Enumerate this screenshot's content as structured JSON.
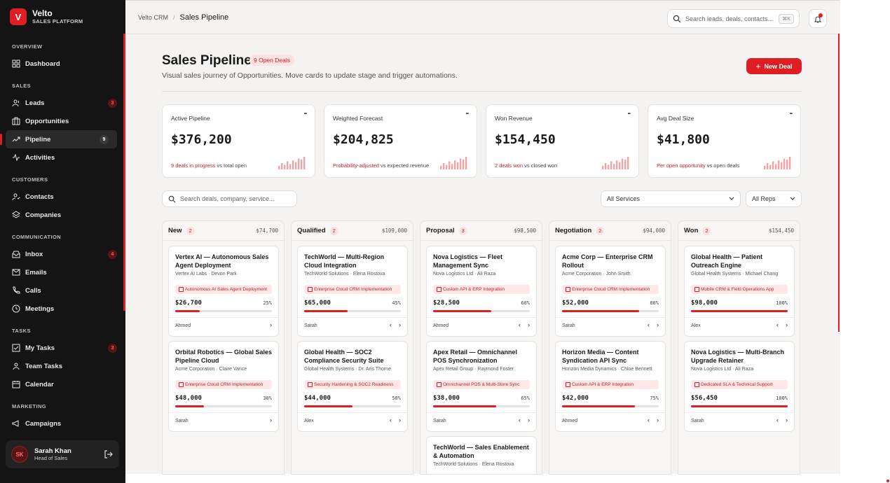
{
  "brand": {
    "name": "Velto",
    "sub": "SALES PLATFORM",
    "logo": "V"
  },
  "sidebar": {
    "sections": [
      {
        "title": "OVERVIEW",
        "items": [
          {
            "label": "Dashboard",
            "icon": "grid-icon",
            "badge": ""
          }
        ]
      },
      {
        "title": "SALES",
        "items": [
          {
            "label": "Leads",
            "icon": "users-icon",
            "badge": "3"
          },
          {
            "label": "Opportunities",
            "icon": "briefcase-icon",
            "badge": ""
          },
          {
            "label": "Pipeline",
            "icon": "trend-icon",
            "badge": "9",
            "active": true
          },
          {
            "label": "Activities",
            "icon": "pulse-icon",
            "badge": ""
          }
        ]
      },
      {
        "title": "CUSTOMERS",
        "items": [
          {
            "label": "Contacts",
            "icon": "contact-icon",
            "badge": ""
          },
          {
            "label": "Companies",
            "icon": "layers-icon",
            "badge": ""
          }
        ]
      },
      {
        "title": "COMMUNICATION",
        "items": [
          {
            "label": "Inbox",
            "icon": "inbox-icon",
            "badge": "4"
          },
          {
            "label": "Emails",
            "icon": "mail-icon",
            "badge": ""
          },
          {
            "label": "Calls",
            "icon": "phone-icon",
            "badge": ""
          },
          {
            "label": "Meetings",
            "icon": "clock-icon",
            "badge": ""
          }
        ]
      },
      {
        "title": "TASKS",
        "items": [
          {
            "label": "My Tasks",
            "icon": "checkbox-icon",
            "badge": "3"
          },
          {
            "label": "Team Tasks",
            "icon": "team-icon",
            "badge": ""
          },
          {
            "label": "Calendar",
            "icon": "calendar-icon",
            "badge": ""
          }
        ]
      },
      {
        "title": "MARKETING",
        "items": [
          {
            "label": "Campaigns",
            "icon": "megaphone-icon",
            "badge": ""
          }
        ]
      }
    ]
  },
  "user": {
    "initials": "SK",
    "name": "Sarah Khan",
    "role": "Head of Sales"
  },
  "header": {
    "crumb_root": "Velto CRM",
    "crumb_sep": "/",
    "crumb_current": "Sales Pipeline",
    "search_placeholder": "Search leads, deals, contacts...",
    "shortcut": "⌘K"
  },
  "page": {
    "title": "Sales Pipeline",
    "badge": "9 Open Deals",
    "subtitle": "Visual sales journey of Opportunities. Move cards to update stage and trigger automations.",
    "new_button": "New Deal"
  },
  "stats": [
    {
      "label": "Active Pipeline",
      "value": "$376,200",
      "highlight": "9 deals in progress",
      "note": " vs total open",
      "bars": [
        4,
        7,
        5,
        9,
        6,
        10,
        8,
        12,
        11,
        14
      ]
    },
    {
      "label": "Weighted Forecast",
      "value": "$204,825",
      "highlight": "Probability-adjusted",
      "note": " vs expected revenue",
      "bars": [
        4,
        7,
        5,
        9,
        6,
        10,
        8,
        12,
        11,
        14
      ]
    },
    {
      "label": "Won Revenue",
      "value": "$154,450",
      "highlight": "2 deals won",
      "note": " vs closed won",
      "bars": [
        4,
        7,
        5,
        9,
        6,
        10,
        8,
        12,
        11,
        14
      ]
    },
    {
      "label": "Avg Deal Size",
      "value": "$41,800",
      "highlight": "Per open opportunity",
      "note": " vs open deals",
      "bars": [
        4,
        7,
        5,
        9,
        6,
        10,
        8,
        12,
        11,
        14
      ]
    }
  ],
  "filters": {
    "search_placeholder": "Search deals, company, service...",
    "service": "All Services",
    "rep": "All Reps"
  },
  "columns": [
    {
      "name": "New",
      "count": "2",
      "total": "$74,700",
      "cards": [
        {
          "title": "Vertex AI — Autonomous Sales Agent Deployment",
          "sub": "Vertex AI Labs · Devon Park",
          "tag": "Autonomous AI Sales Agent Deployment",
          "amount": "$26,700",
          "pct": "25%",
          "progress": 0.25,
          "owner": "Ahmed",
          "arrows": "›"
        },
        {
          "title": "Orbital Robotics — Global Sales Pipeline Cloud",
          "sub": "Acme Corporation · Claire Vance",
          "tag": "Enterprise Cloud CRM Implementation",
          "amount": "$48,000",
          "pct": "30%",
          "progress": 0.3,
          "owner": "Sarah",
          "arrows": "›"
        }
      ]
    },
    {
      "name": "Qualified",
      "count": "2",
      "total": "$109,000",
      "cards": [
        {
          "title": "TechWorld — Multi-Region Cloud Integration",
          "sub": "TechWorld Solutions · Elena Rostova",
          "tag": "Enterprise Cloud CRM Implementation",
          "amount": "$65,000",
          "pct": "45%",
          "progress": 0.45,
          "owner": "Sarah",
          "arrows": "‹ ›"
        },
        {
          "title": "Global Health — SOC2 Compliance Security Suite",
          "sub": "Global Health Systems · Dr. Aris Thorne",
          "tag": "Security Hardening & SOC2 Readiness",
          "amount": "$44,000",
          "pct": "50%",
          "progress": 0.5,
          "owner": "Alex",
          "arrows": "‹ ›"
        }
      ]
    },
    {
      "name": "Proposal",
      "count": "3",
      "total": "$98,500",
      "cards": [
        {
          "title": "Nova Logistics — Fleet Management Sync",
          "sub": "Nova Logistics Ltd · Ali Raza",
          "tag": "Custom API & ERP Integration",
          "amount": "$28,500",
          "pct": "60%",
          "progress": 0.6,
          "owner": "Ahmed",
          "arrows": "‹ ›"
        },
        {
          "title": "Apex Retail — Omnichannel POS Synchronization",
          "sub": "Apex Retail Group · Raymond Foster",
          "tag": "Omnichannel POS & Multi-Store Sync",
          "amount": "$38,000",
          "pct": "65%",
          "progress": 0.65,
          "owner": "Sarah",
          "arrows": "‹ ›"
        },
        {
          "title": "TechWorld — Sales Enablement & Automation",
          "sub": "TechWorld Solutions · Elena Rostova",
          "tag": "",
          "amount": "",
          "pct": "",
          "progress": 0,
          "owner": "",
          "arrows": ""
        }
      ]
    },
    {
      "name": "Negotiation",
      "count": "2",
      "total": "$94,000",
      "cards": [
        {
          "title": "Acme Corp — Enterprise CRM Rollout",
          "sub": "Acme Corporation · John Smith",
          "tag": "Enterprise Cloud CRM Implementation",
          "amount": "$52,000",
          "pct": "80%",
          "progress": 0.8,
          "owner": "Sarah",
          "arrows": "‹ ›"
        },
        {
          "title": "Horizon Media — Content Syndication API Sync",
          "sub": "Horizon Media Dynamics · Chloe Bennett",
          "tag": "Custom API & ERP Integration",
          "amount": "$42,000",
          "pct": "75%",
          "progress": 0.75,
          "owner": "Ahmed",
          "arrows": "‹ ›"
        }
      ]
    },
    {
      "name": "Won",
      "count": "2",
      "total": "$154,450",
      "cards": [
        {
          "title": "Global Health — Patient Outreach Engine",
          "sub": "Global Health Systems · Michael Chang",
          "tag": "Mobile CRM & Field Operations App",
          "amount": "$98,000",
          "pct": "100%",
          "progress": 1.0,
          "owner": "Alex",
          "arrows": "‹ ›"
        },
        {
          "title": "Nova Logistics — Multi-Branch Upgrade Retainer",
          "sub": "Nova Logistics Ltd · Ali Raza",
          "tag": "Dedicated SLA & Technical Support",
          "amount": "$56,450",
          "pct": "100%",
          "progress": 1.0,
          "owner": "Sarah",
          "arrows": "‹ ›"
        }
      ]
    }
  ],
  "colors": {
    "accent": "#e11d24",
    "sidebar": "#141414",
    "bg": "#f4f3f1"
  }
}
